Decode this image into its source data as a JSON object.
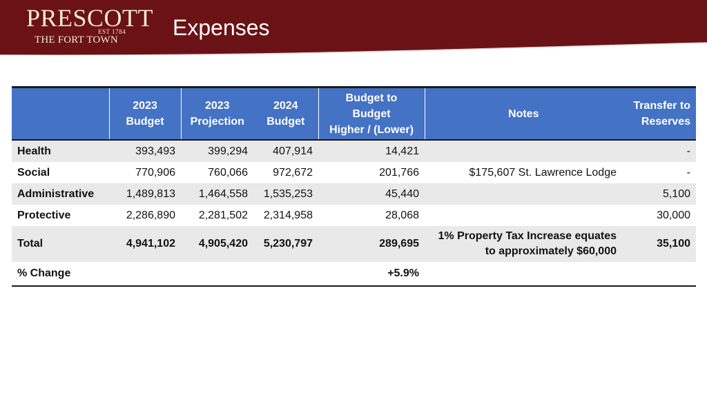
{
  "header": {
    "logo": {
      "word": "PRESCOTT",
      "est": "EST 1784",
      "tagline": "THE FORT TOWN"
    },
    "title": "Expenses",
    "color": "#6b1216"
  },
  "table": {
    "header_color": "#4472c4",
    "columns": {
      "budget_2023": [
        "2023",
        "Budget"
      ],
      "projection_2023": [
        "2023",
        "Projection"
      ],
      "budget_2024": [
        "2024",
        "Budget"
      ],
      "difference": [
        "Budget to",
        "Budget",
        "Higher / (Lower)"
      ],
      "notes": "Notes",
      "reserves": [
        "Transfer to",
        "Reserves"
      ]
    },
    "rows": [
      {
        "label": "Health",
        "budget_2023": "393,493",
        "projection_2023": "399,294",
        "budget_2024": "407,914",
        "difference": "14,421",
        "notes": "",
        "reserves": "-"
      },
      {
        "label": "Social",
        "budget_2023": "770,906",
        "projection_2023": "760,066",
        "budget_2024": "972,672",
        "difference": "201,766",
        "notes": "$175,607 St. Lawrence Lodge",
        "reserves": "-"
      },
      {
        "label": "Administrative",
        "budget_2023": "1,489,813",
        "projection_2023": "1,464,558",
        "budget_2024": "1,535,253",
        "difference": "45,440",
        "notes": "",
        "reserves": "5,100"
      },
      {
        "label": "Protective",
        "budget_2023": "2,286,890",
        "projection_2023": "2,281,502",
        "budget_2024": "2,314,958",
        "difference": "28,068",
        "notes": "",
        "reserves": "30,000"
      }
    ],
    "total": {
      "label": "Total",
      "budget_2023": "4,941,102",
      "projection_2023": "4,905,420",
      "budget_2024": "5,230,797",
      "difference": "289,695",
      "notes": [
        "1% Property Tax Increase equates",
        "to approximately $60,000"
      ],
      "reserves": "35,100"
    },
    "change": {
      "label": "% Change",
      "difference": "+5.9%"
    }
  }
}
